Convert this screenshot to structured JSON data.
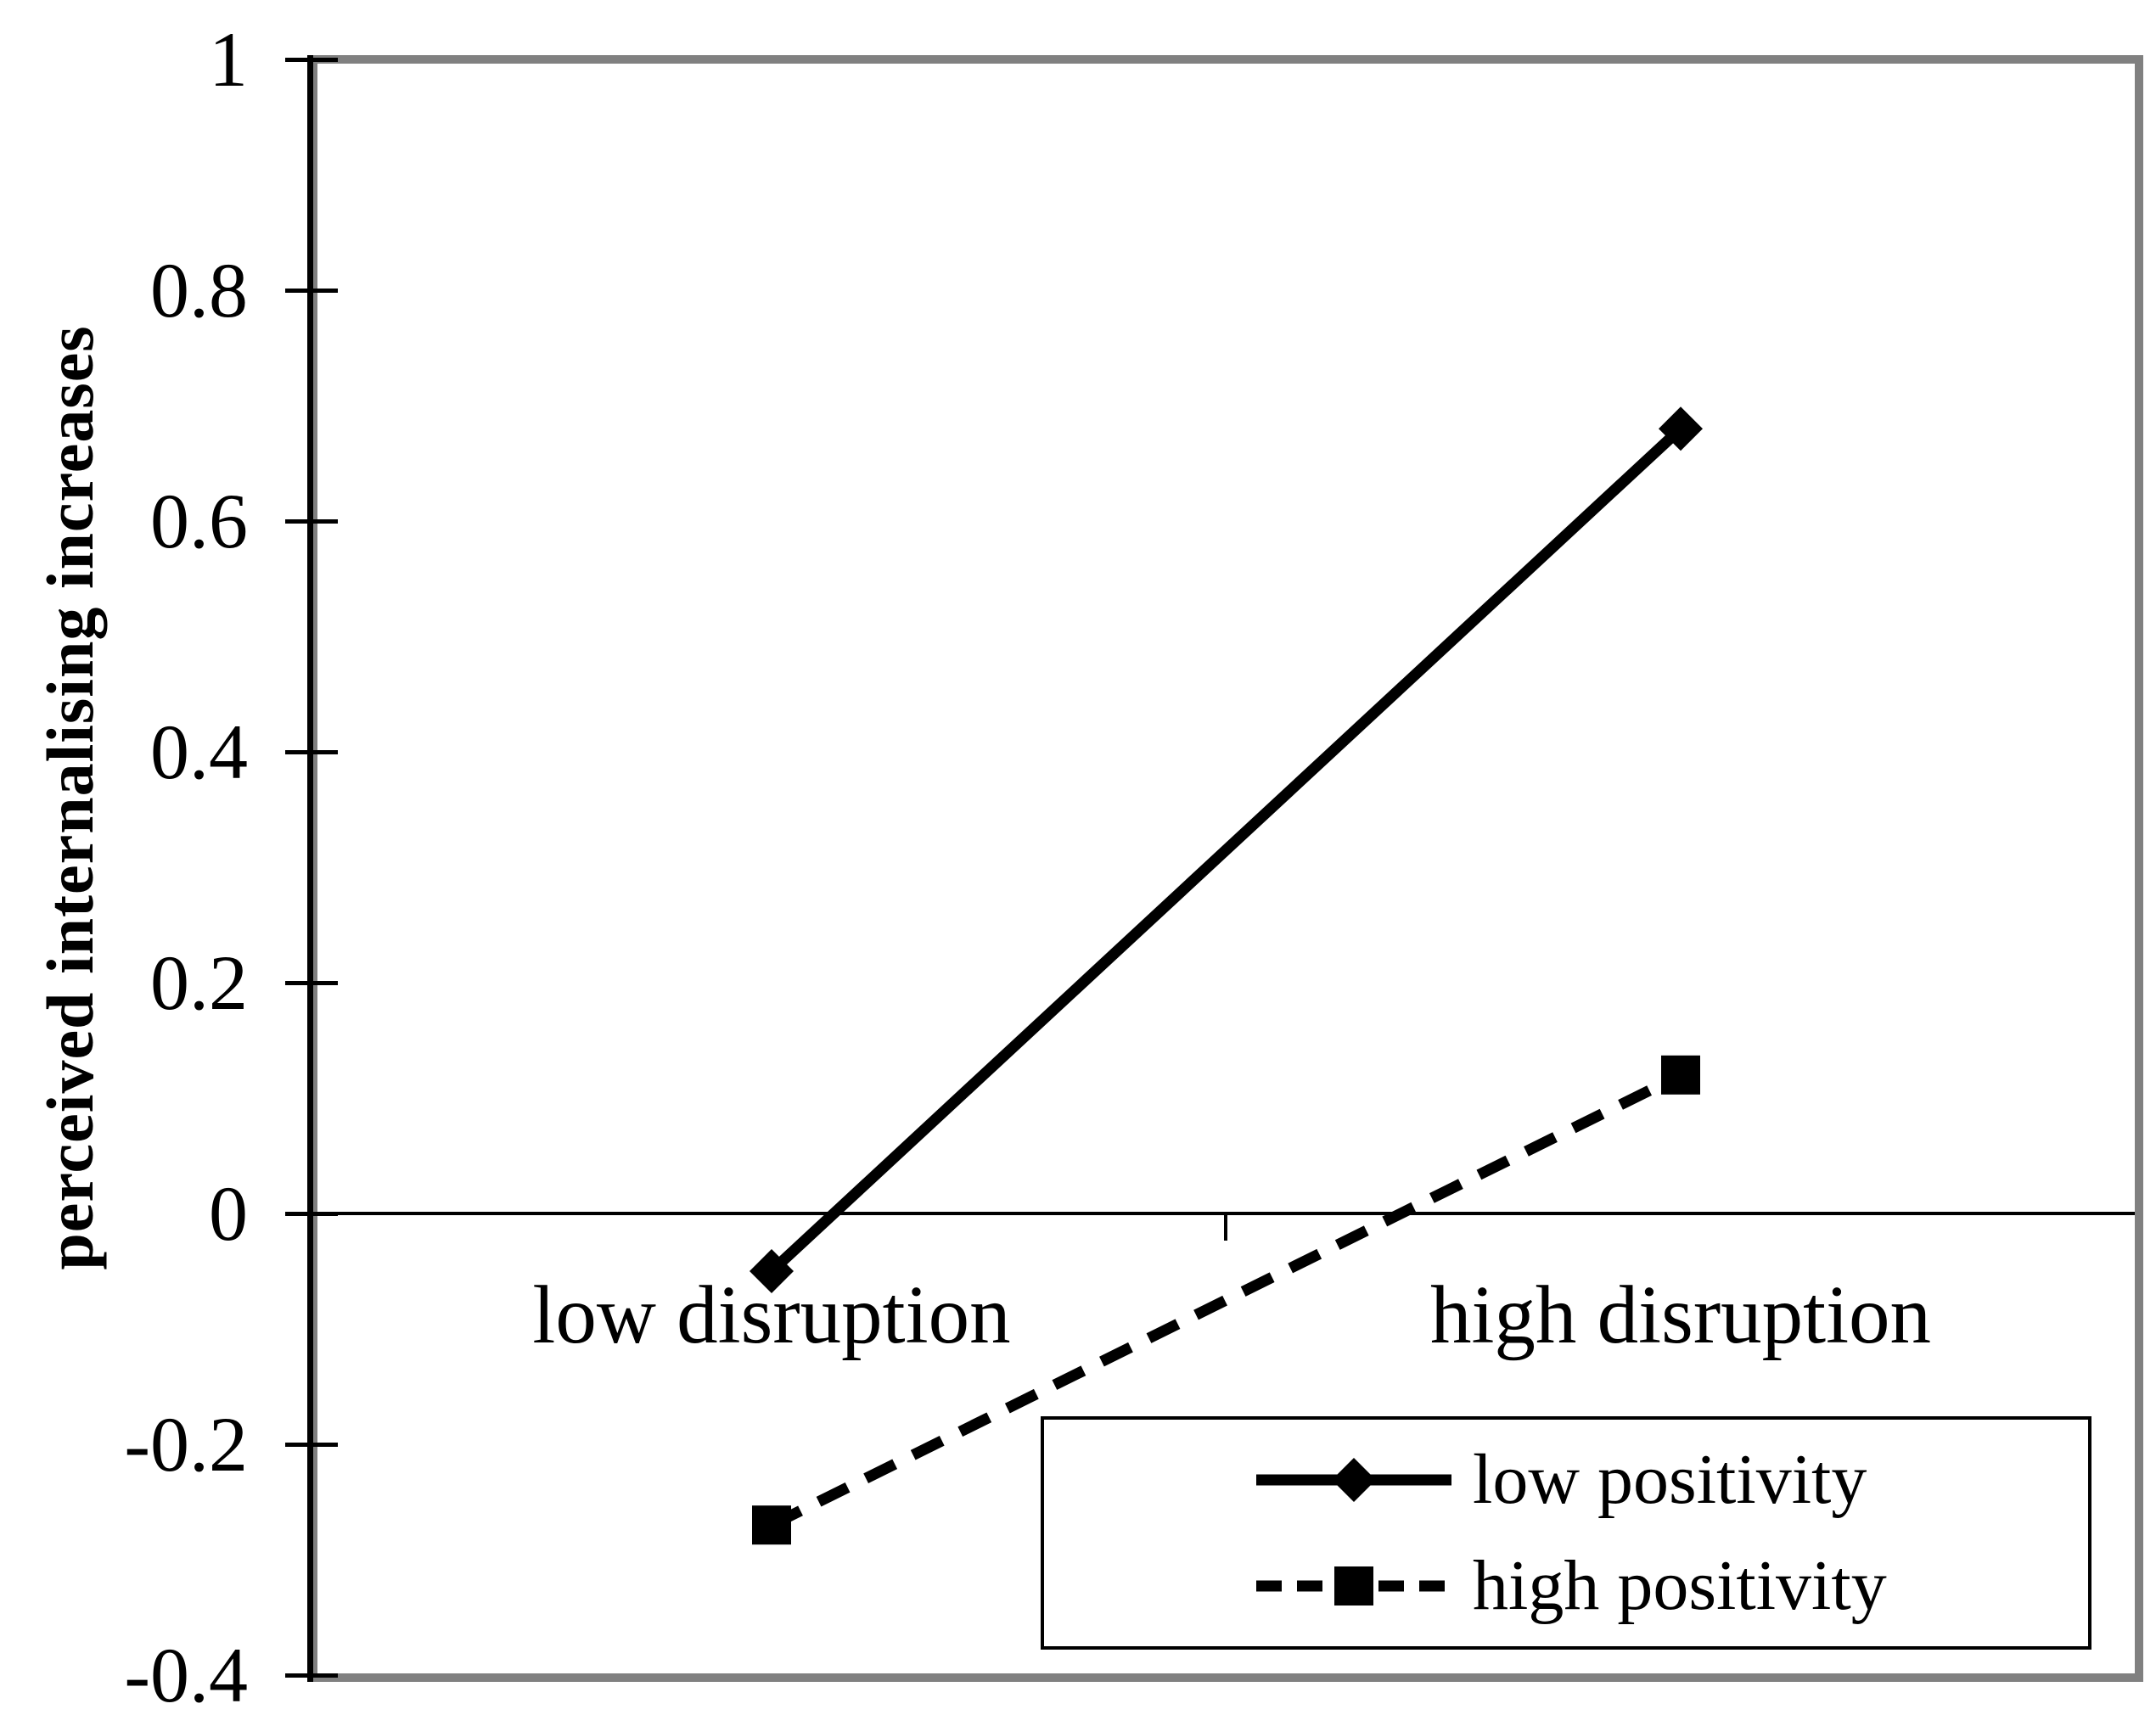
{
  "figure": {
    "background": "#ffffff",
    "frame_color": "#808080",
    "axis_color": "#000000",
    "text_color": "#000000"
  },
  "chart_data": {
    "type": "line",
    "title": "",
    "xlabel": "",
    "ylabel": "perceived internalising increases",
    "categories": [
      "low disruption",
      "high disruption"
    ],
    "series": [
      {
        "name": "low positivity",
        "values": [
          -0.05,
          0.68
        ],
        "line": "solid",
        "marker": "diamond",
        "color": "#000000"
      },
      {
        "name": "high positivity",
        "values": [
          -0.27,
          0.12
        ],
        "line": "dashed",
        "marker": "square",
        "color": "#000000"
      }
    ],
    "ylim": [
      -0.4,
      1
    ],
    "yticks": [
      1,
      0.8,
      0.6,
      0.4,
      0.2,
      0,
      -0.2,
      -0.4
    ],
    "ytick_labels": [
      "1",
      "0.8",
      "0.6",
      "0.4",
      "0.2",
      "0",
      "-0.2",
      "-0.4"
    ],
    "grid": false,
    "zero_line": true,
    "legend_position": "inside-bottom-right"
  }
}
